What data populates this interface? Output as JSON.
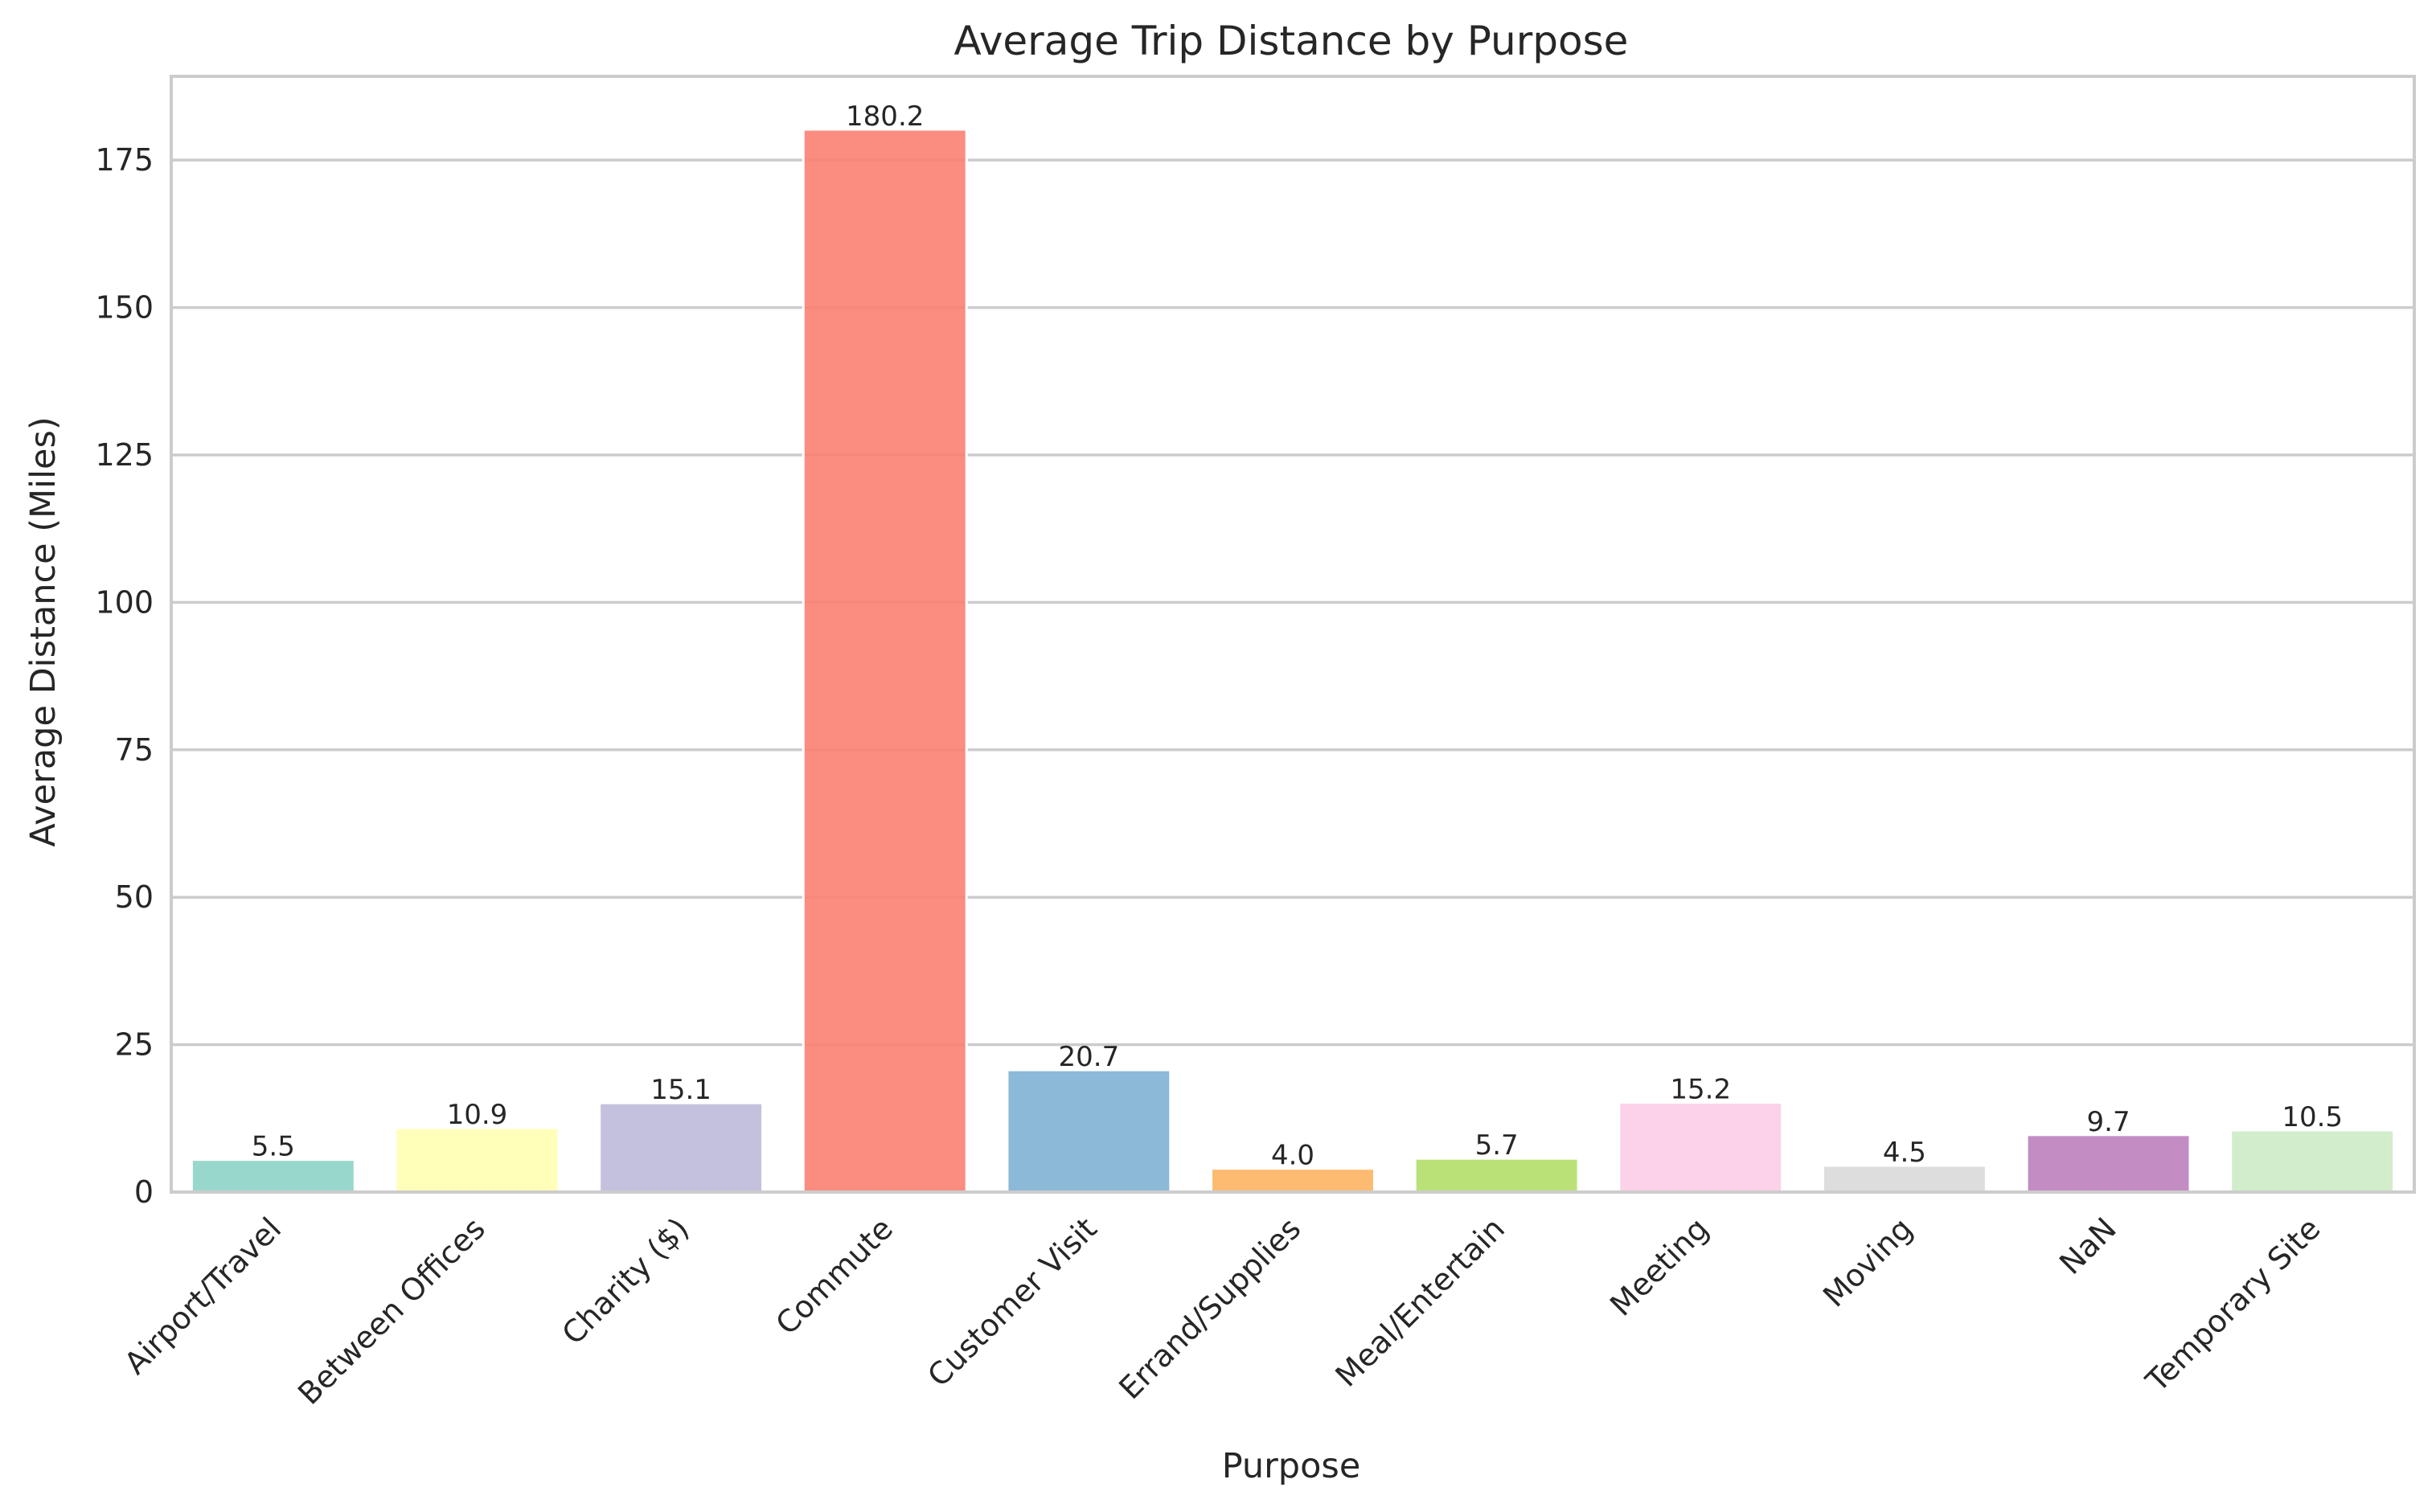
{
  "chart_data": {
    "type": "bar",
    "title": "Average Trip Distance by Purpose",
    "xlabel": "Purpose",
    "ylabel": "Average Distance (Miles)",
    "categories": [
      "Airport/Travel",
      "Between Offices",
      "Charity ($)",
      "Commute",
      "Customer Visit",
      "Errand/Supplies",
      "Meal/Entertain",
      "Meeting",
      "Moving",
      "NaN",
      "Temporary Site"
    ],
    "values": [
      5.5,
      10.9,
      15.1,
      180.2,
      20.7,
      4.0,
      5.7,
      15.2,
      4.5,
      9.7,
      10.5
    ],
    "data_labels": [
      "5.5",
      "10.9",
      "15.1",
      "180.2",
      "20.7",
      "4.0",
      "5.7",
      "15.2",
      "4.5",
      "9.7",
      "10.5"
    ],
    "colors": [
      "#8dd3c7",
      "#ffffb3",
      "#bebada",
      "#fb8072",
      "#80b1d3",
      "#fdb462",
      "#b3de69",
      "#fccde5",
      "#d9d9d9",
      "#bc80bd",
      "#ccebc5"
    ],
    "bar_opacity": 0.9,
    "yticks": [
      0,
      25,
      50,
      75,
      100,
      125,
      150,
      175
    ],
    "ytick_labels": [
      "0",
      "25",
      "50",
      "75",
      "100",
      "125",
      "150",
      "175"
    ],
    "ylim": [
      0,
      189.2
    ],
    "grid": true,
    "grid_axis": "y",
    "style": "seaborn-whitegrid",
    "legend": "none"
  }
}
